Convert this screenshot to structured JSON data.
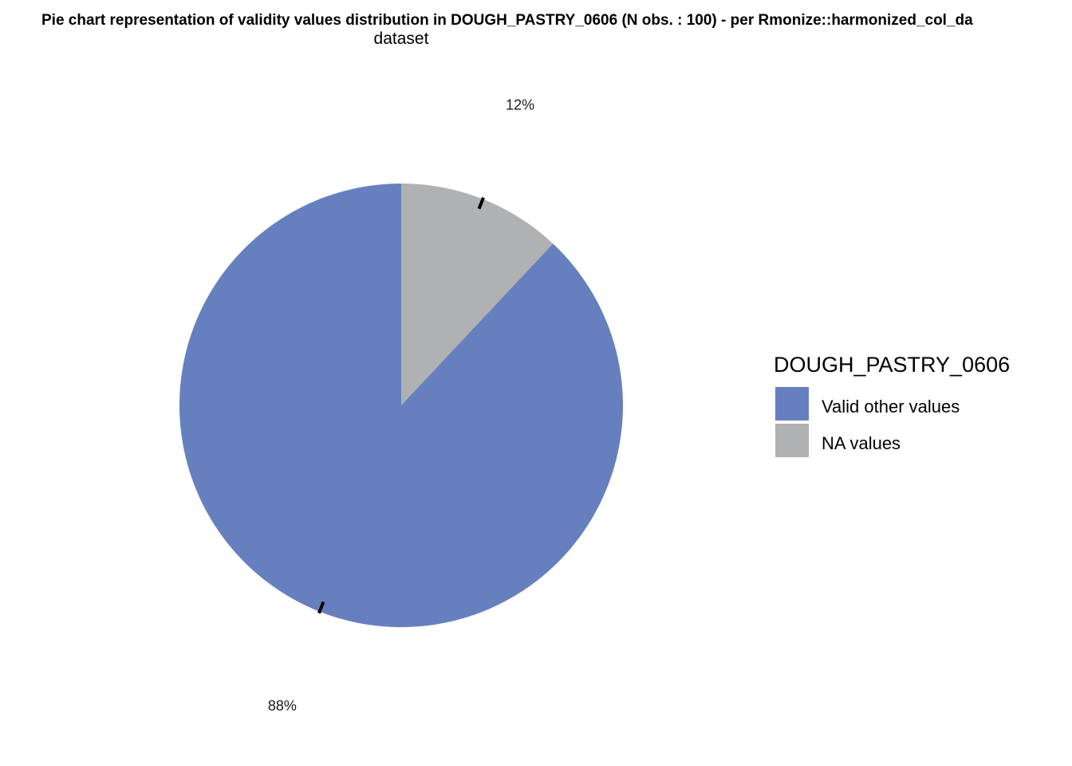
{
  "chart_data": {
    "type": "pie",
    "title": "Pie chart representation of validity values distribution in DOUGH_PASTRY_0606 (N obs. : 100) - per Rmonize::harmonized_col_dataset",
    "title_line1": "Pie chart representation of validity values distribution in DOUGH_PASTRY_0606 (N obs. : 100) - per Rmonize::harmonized_col_da",
    "title_line2": "dataset",
    "slices": [
      {
        "name": "Valid other values",
        "value": 88,
        "label": "88%",
        "color": "#6680bf"
      },
      {
        "name": "NA values",
        "value": 12,
        "label": "12%",
        "color": "#b0b1b3"
      }
    ],
    "legend": {
      "title": "DOUGH_PASTRY_0606",
      "position": "right",
      "items": [
        "Valid other values",
        "NA values"
      ]
    },
    "start": "top",
    "direction": "clockwise",
    "grid": false
  }
}
